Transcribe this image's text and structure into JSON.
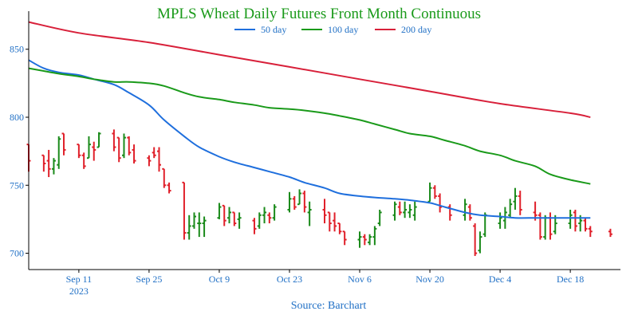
{
  "chart_data": {
    "type": "line",
    "title": "MPLS Wheat Daily Futures Front Month Continuous",
    "source": "Source: Barchart",
    "colors": {
      "title": "#1a9a1a",
      "axis_text": "#1f6fc5",
      "up_bar": "#1a8a1a",
      "down_bar": "#e0202a",
      "axis_line": "#000000"
    },
    "legend_placement": "top",
    "grid": false,
    "ylim": [
      688,
      878
    ],
    "xlim": [
      "2023-09-01",
      "2023-12-28"
    ],
    "y_ticks": [
      700,
      750,
      800,
      850
    ],
    "x_ticks": [
      {
        "date": "2023-09-11",
        "label": "Sep 11",
        "sublabel": "2023"
      },
      {
        "date": "2023-09-25",
        "label": "Sep 25",
        "sublabel": ""
      },
      {
        "date": "2023-10-09",
        "label": "Oct 9",
        "sublabel": ""
      },
      {
        "date": "2023-10-23",
        "label": "Oct 23",
        "sublabel": ""
      },
      {
        "date": "2023-11-06",
        "label": "Nov 6",
        "sublabel": ""
      },
      {
        "date": "2023-11-20",
        "label": "Nov 20",
        "sublabel": ""
      },
      {
        "date": "2023-12-04",
        "label": "Dec 4",
        "sublabel": ""
      },
      {
        "date": "2023-12-18",
        "label": "Dec 18",
        "sublabel": ""
      }
    ],
    "series": [
      {
        "name": "50 day",
        "color": "#1f6fdd",
        "points": [
          [
            "2023-09-01",
            842
          ],
          [
            "2023-09-04",
            836
          ],
          [
            "2023-09-07",
            833
          ],
          [
            "2023-09-11",
            831
          ],
          [
            "2023-09-14",
            828
          ],
          [
            "2023-09-18",
            824
          ],
          [
            "2023-09-21",
            818
          ],
          [
            "2023-09-25",
            809
          ],
          [
            "2023-09-28",
            798
          ],
          [
            "2023-10-02",
            786
          ],
          [
            "2023-10-05",
            778
          ],
          [
            "2023-10-09",
            771
          ],
          [
            "2023-10-12",
            767
          ],
          [
            "2023-10-16",
            763
          ],
          [
            "2023-10-19",
            760
          ],
          [
            "2023-10-23",
            756
          ],
          [
            "2023-10-26",
            752
          ],
          [
            "2023-10-30",
            748
          ],
          [
            "2023-11-02",
            744
          ],
          [
            "2023-11-06",
            742
          ],
          [
            "2023-11-09",
            741
          ],
          [
            "2023-11-13",
            740
          ],
          [
            "2023-11-16",
            739
          ],
          [
            "2023-11-20",
            737
          ],
          [
            "2023-11-23",
            734
          ],
          [
            "2023-11-27",
            730
          ],
          [
            "2023-11-30",
            728
          ],
          [
            "2023-12-04",
            727
          ],
          [
            "2023-12-07",
            726
          ],
          [
            "2023-12-11",
            726
          ],
          [
            "2023-12-14",
            726
          ],
          [
            "2023-12-18",
            726
          ],
          [
            "2023-12-22",
            726
          ]
        ]
      },
      {
        "name": "100 day",
        "color": "#1a9a1a",
        "points": [
          [
            "2023-09-01",
            836
          ],
          [
            "2023-09-04",
            834
          ],
          [
            "2023-09-07",
            832
          ],
          [
            "2023-09-11",
            830
          ],
          [
            "2023-09-14",
            828
          ],
          [
            "2023-09-18",
            826
          ],
          [
            "2023-09-21",
            826
          ],
          [
            "2023-09-25",
            825
          ],
          [
            "2023-09-28",
            823
          ],
          [
            "2023-10-02",
            818
          ],
          [
            "2023-10-05",
            815
          ],
          [
            "2023-10-09",
            813
          ],
          [
            "2023-10-12",
            811
          ],
          [
            "2023-10-16",
            809
          ],
          [
            "2023-10-19",
            807
          ],
          [
            "2023-10-23",
            806
          ],
          [
            "2023-10-26",
            805
          ],
          [
            "2023-10-30",
            803
          ],
          [
            "2023-11-02",
            801
          ],
          [
            "2023-11-06",
            798
          ],
          [
            "2023-11-09",
            795
          ],
          [
            "2023-11-13",
            791
          ],
          [
            "2023-11-16",
            788
          ],
          [
            "2023-11-20",
            786
          ],
          [
            "2023-11-23",
            783
          ],
          [
            "2023-11-27",
            779
          ],
          [
            "2023-11-30",
            775
          ],
          [
            "2023-12-04",
            772
          ],
          [
            "2023-12-07",
            768
          ],
          [
            "2023-12-11",
            764
          ],
          [
            "2023-12-14",
            758
          ],
          [
            "2023-12-18",
            754
          ],
          [
            "2023-12-22",
            751
          ]
        ]
      },
      {
        "name": "200 day",
        "color": "#d8203a",
        "points": [
          [
            "2023-09-01",
            870
          ],
          [
            "2023-09-11",
            862
          ],
          [
            "2023-09-25",
            855
          ],
          [
            "2023-10-09",
            846
          ],
          [
            "2023-10-23",
            837
          ],
          [
            "2023-11-06",
            828
          ],
          [
            "2023-11-20",
            819
          ],
          [
            "2023-12-04",
            810
          ],
          [
            "2023-12-18",
            803
          ],
          [
            "2023-12-22",
            800
          ]
        ]
      }
    ],
    "ohlc": [
      [
        "2023-09-01",
        780,
        780,
        760,
        768
      ],
      [
        "2023-09-04",
        772,
        772,
        760,
        766
      ],
      [
        "2023-09-05",
        768,
        776,
        756,
        762
      ],
      [
        "2023-09-06",
        762,
        770,
        758,
        768
      ],
      [
        "2023-09-07",
        765,
        786,
        762,
        784
      ],
      [
        "2023-09-08",
        788,
        788,
        772,
        776
      ],
      [
        "2023-09-11",
        780,
        780,
        770,
        772
      ],
      [
        "2023-09-12",
        772,
        774,
        762,
        764
      ],
      [
        "2023-09-13",
        770,
        786,
        770,
        780
      ],
      [
        "2023-09-14",
        778,
        782,
        768,
        776
      ],
      [
        "2023-09-15",
        778,
        789,
        778,
        788
      ],
      [
        "2023-09-18",
        788,
        791,
        775,
        778
      ],
      [
        "2023-09-19",
        785,
        785,
        767,
        770
      ],
      [
        "2023-09-20",
        772,
        788,
        770,
        785
      ],
      [
        "2023-09-21",
        785,
        786,
        772,
        774
      ],
      [
        "2023-09-22",
        776,
        780,
        766,
        768
      ],
      [
        "2023-09-25",
        770,
        772,
        764,
        768
      ],
      [
        "2023-09-26",
        774,
        778,
        770,
        772
      ],
      [
        "2023-09-27",
        775,
        778,
        760,
        765
      ],
      [
        "2023-09-28",
        762,
        762,
        748,
        750
      ],
      [
        "2023-09-29",
        750,
        752,
        744,
        746
      ],
      [
        "2023-10-02",
        752,
        752,
        710,
        715
      ],
      [
        "2023-10-03",
        715,
        728,
        710,
        720
      ],
      [
        "2023-10-04",
        720,
        730,
        718,
        727
      ],
      [
        "2023-10-05",
        722,
        730,
        712,
        722
      ],
      [
        "2023-10-06",
        722,
        727,
        712,
        724
      ],
      [
        "2023-10-09",
        726,
        737,
        725,
        734
      ],
      [
        "2023-10-10",
        735,
        735,
        720,
        724
      ],
      [
        "2023-10-11",
        726,
        734,
        722,
        730
      ],
      [
        "2023-10-12",
        730,
        730,
        720,
        722
      ],
      [
        "2023-10-13",
        725,
        730,
        718,
        726
      ],
      [
        "2023-10-16",
        724,
        726,
        714,
        718
      ],
      [
        "2023-10-17",
        720,
        730,
        718,
        728
      ],
      [
        "2023-10-18",
        728,
        734,
        722,
        730
      ],
      [
        "2023-10-19",
        728,
        730,
        722,
        726
      ],
      [
        "2023-10-20",
        726,
        736,
        724,
        734
      ],
      [
        "2023-10-23",
        732,
        745,
        730,
        740
      ],
      [
        "2023-10-24",
        740,
        742,
        732,
        734
      ],
      [
        "2023-10-25",
        736,
        747,
        736,
        744
      ],
      [
        "2023-10-26",
        744,
        746,
        730,
        734
      ],
      [
        "2023-10-27",
        730,
        738,
        720,
        732
      ],
      [
        "2023-10-30",
        732,
        740,
        722,
        728
      ],
      [
        "2023-10-31",
        730,
        730,
        716,
        722
      ],
      [
        "2023-11-01",
        724,
        730,
        716,
        720
      ],
      [
        "2023-11-02",
        722,
        722,
        714,
        716
      ],
      [
        "2023-11-03",
        716,
        716,
        706,
        710
      ],
      [
        "2023-11-06",
        710,
        716,
        704,
        712
      ],
      [
        "2023-11-07",
        712,
        714,
        706,
        710
      ],
      [
        "2023-11-08",
        708,
        714,
        706,
        712
      ],
      [
        "2023-11-09",
        712,
        720,
        706,
        718
      ],
      [
        "2023-11-10",
        722,
        732,
        720,
        730
      ],
      [
        "2023-11-13",
        728,
        738,
        724,
        736
      ],
      [
        "2023-11-14",
        734,
        738,
        728,
        730
      ],
      [
        "2023-11-15",
        730,
        738,
        726,
        732
      ],
      [
        "2023-11-16",
        730,
        736,
        726,
        732
      ],
      [
        "2023-11-17",
        728,
        738,
        724,
        734
      ],
      [
        "2023-11-20",
        738,
        752,
        738,
        748
      ],
      [
        "2023-11-21",
        748,
        750,
        740,
        742
      ],
      [
        "2023-11-22",
        742,
        744,
        730,
        734
      ],
      [
        "2023-11-24",
        734,
        736,
        724,
        728
      ],
      [
        "2023-11-27",
        728,
        740,
        724,
        736
      ],
      [
        "2023-11-28",
        734,
        736,
        724,
        726
      ],
      [
        "2023-11-29",
        720,
        722,
        698,
        700
      ],
      [
        "2023-11-30",
        702,
        716,
        700,
        712
      ],
      [
        "2023-12-01",
        714,
        730,
        712,
        728
      ],
      [
        "2023-12-04",
        722,
        730,
        718,
        726
      ],
      [
        "2023-12-05",
        724,
        734,
        718,
        730
      ],
      [
        "2023-12-06",
        728,
        740,
        726,
        736
      ],
      [
        "2023-12-07",
        738,
        748,
        732,
        742
      ],
      [
        "2023-12-08",
        742,
        746,
        728,
        732
      ],
      [
        "2023-12-11",
        730,
        738,
        724,
        728
      ],
      [
        "2023-12-12",
        728,
        730,
        710,
        712
      ],
      [
        "2023-12-13",
        712,
        728,
        710,
        726
      ],
      [
        "2023-12-14",
        726,
        730,
        710,
        714
      ],
      [
        "2023-12-15",
        716,
        728,
        714,
        722
      ],
      [
        "2023-12-18",
        722,
        732,
        718,
        728
      ],
      [
        "2023-12-19",
        730,
        732,
        716,
        720
      ],
      [
        "2023-12-20",
        722,
        728,
        716,
        724
      ],
      [
        "2023-12-21",
        724,
        726,
        716,
        718
      ],
      [
        "2023-12-22",
        718,
        720,
        712,
        716
      ],
      [
        "2023-12-26",
        716,
        718,
        712,
        714
      ]
    ]
  }
}
